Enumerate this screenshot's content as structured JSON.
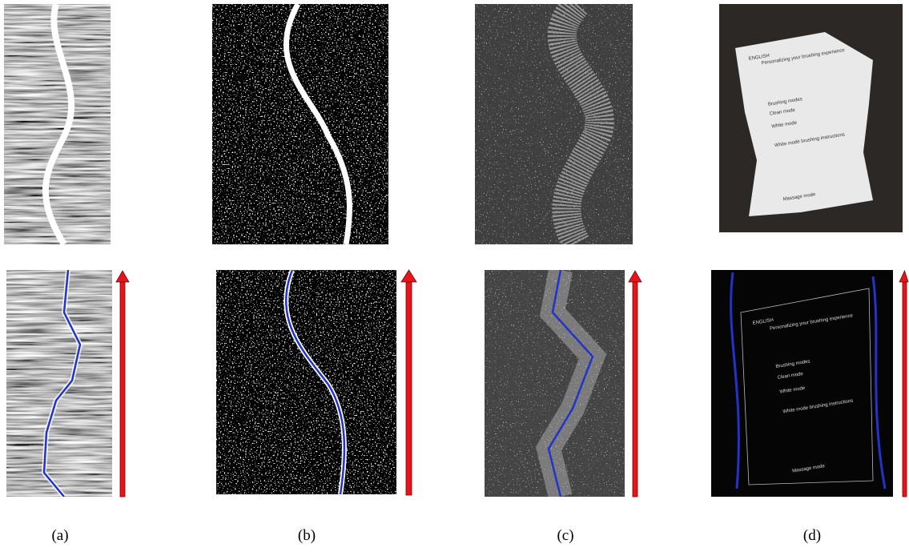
{
  "panels": [
    {
      "label": "(a)"
    },
    {
      "label": "(b)"
    },
    {
      "label": "(c)"
    },
    {
      "label": "(d)"
    }
  ],
  "document_photo": {
    "lines": [
      "ENGLISH",
      "Personalizing your brushing experience",
      "Brushing modes",
      "Clean mode",
      "White mode",
      "White mode brushing instructions",
      "Massage mode"
    ]
  }
}
